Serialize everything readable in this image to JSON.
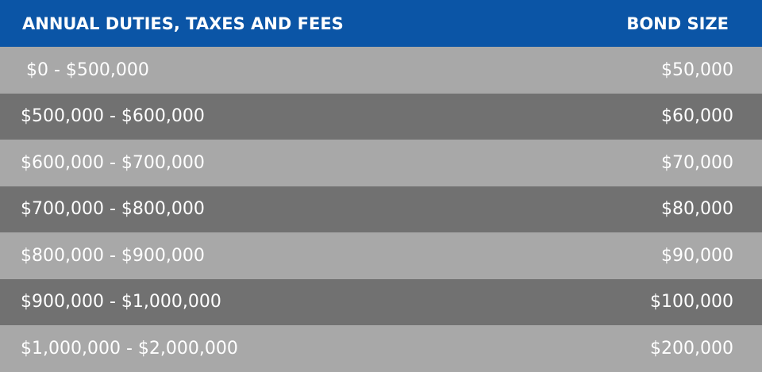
{
  "table": {
    "header": [
      "ANNUAL DUTIES, TAXES AND FEES",
      "BOND SIZE"
    ],
    "rows": [
      [
        " $0 - $500,000",
        "$50,000"
      ],
      [
        "$500,000 - $600,000",
        "$60,000"
      ],
      [
        "$600,000 - $700,000",
        "$70,000"
      ],
      [
        "$700,000 - $800,000",
        "$80,000"
      ],
      [
        "$800,000 - $900,000",
        "$90,000"
      ],
      [
        "$900,000 - $1,000,000",
        "$100,000"
      ],
      [
        "$1,000,000 - $2,000,000",
        "$200,000"
      ]
    ]
  }
}
